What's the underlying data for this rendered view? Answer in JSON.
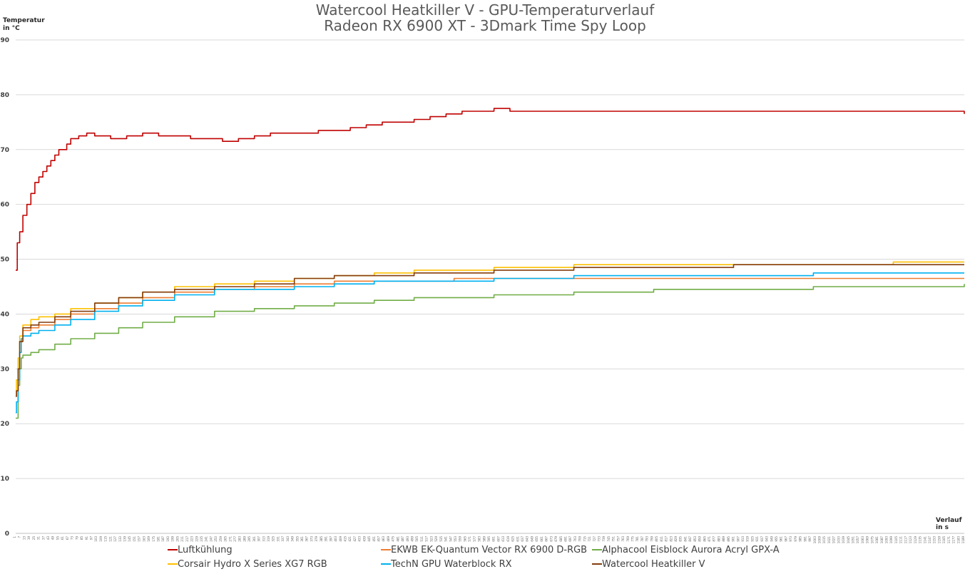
{
  "chart_data": {
    "type": "line",
    "title": "Watercool Heatkiller V - GPU-Temperaturverlauf",
    "subtitle": "Radeon RX 6900 XT - 3Dmark Time Spy Loop",
    "ylabel": [
      "Temperatur",
      "in °C"
    ],
    "xlabel": [
      "Verlauf",
      "in s"
    ],
    "ylim": [
      0,
      90
    ],
    "yticks": [
      0,
      10,
      20,
      30,
      40,
      50,
      60,
      70,
      80,
      90
    ],
    "xlim": [
      1,
      1189
    ],
    "xtick_start": 1,
    "xtick_step": 6,
    "grid": true,
    "legend_position": "bottom",
    "series": [
      {
        "name": "Luftkühlung",
        "color": "#c00000",
        "x": [
          1,
          3,
          6,
          10,
          15,
          20,
          25,
          30,
          35,
          40,
          45,
          50,
          55,
          60,
          65,
          70,
          75,
          80,
          90,
          100,
          120,
          140,
          160,
          180,
          200,
          220,
          240,
          260,
          280,
          300,
          320,
          340,
          360,
          380,
          400,
          420,
          440,
          460,
          480,
          500,
          520,
          540,
          560,
          580,
          600,
          620,
          640,
          660,
          700,
          750,
          800,
          850,
          900,
          950,
          1000,
          1050,
          1100,
          1150,
          1189
        ],
        "values": [
          48,
          53,
          55,
          58,
          60,
          62,
          64,
          65,
          66,
          67,
          68,
          69,
          70,
          70,
          71,
          72,
          72,
          72.5,
          73,
          72.5,
          72,
          72.5,
          73,
          72.5,
          72.5,
          72,
          72,
          71.5,
          72,
          72.5,
          73,
          73,
          73,
          73.5,
          73.5,
          74,
          74.5,
          75,
          75,
          75.5,
          76,
          76.5,
          77,
          77,
          77.5,
          77,
          77,
          77,
          77,
          77,
          77,
          77,
          77,
          77,
          77,
          77,
          77,
          77,
          76.5
        ]
      },
      {
        "name": "EKWB EK-Quantum Vector RX 6900 D-RGB",
        "color": "#ed7d31",
        "x": [
          1,
          2,
          4,
          6,
          10,
          20,
          30,
          50,
          70,
          100,
          130,
          160,
          200,
          250,
          300,
          350,
          400,
          450,
          500,
          550,
          600,
          700,
          800,
          900,
          1000,
          1100,
          1189
        ],
        "values": [
          25,
          26,
          30,
          35,
          37,
          37.5,
          38,
          39,
          40,
          41,
          42,
          43,
          44,
          44.5,
          45,
          45.5,
          46,
          46,
          46,
          46.5,
          46.5,
          46.5,
          46.5,
          46.5,
          46.5,
          46.5,
          46.5
        ]
      },
      {
        "name": "Alphacool Eisblock Aurora Acryl GPX-A",
        "color": "#70ad47",
        "x": [
          1,
          2,
          4,
          6,
          8,
          10,
          20,
          30,
          50,
          70,
          100,
          130,
          160,
          200,
          250,
          300,
          350,
          400,
          450,
          500,
          600,
          700,
          800,
          900,
          1000,
          1100,
          1189
        ],
        "values": [
          21,
          21,
          27,
          30,
          32,
          32.5,
          33,
          33.5,
          34.5,
          35.5,
          36.5,
          37.5,
          38.5,
          39.5,
          40.5,
          41,
          41.5,
          42,
          42.5,
          43,
          43.5,
          44,
          44.5,
          44.5,
          45,
          45,
          45.5
        ]
      },
      {
        "name": "Corsair Hydro X Series XG7 RGB",
        "color": "#ffc000",
        "x": [
          1,
          2,
          4,
          6,
          10,
          20,
          30,
          50,
          70,
          100,
          130,
          160,
          200,
          250,
          300,
          350,
          400,
          450,
          500,
          600,
          700,
          800,
          900,
          1000,
          1100,
          1189
        ],
        "values": [
          26,
          28,
          32,
          36,
          38,
          39,
          39.5,
          40,
          41,
          42,
          43,
          44,
          45,
          45.5,
          46,
          46.5,
          47,
          47.5,
          48,
          48.5,
          49,
          49,
          49,
          49,
          49.5,
          49.5
        ]
      },
      {
        "name": "TechN GPU Waterblock RX",
        "color": "#00b0f0",
        "x": [
          1,
          2,
          4,
          6,
          8,
          10,
          20,
          30,
          50,
          70,
          100,
          130,
          160,
          200,
          250,
          300,
          350,
          400,
          450,
          500,
          600,
          700,
          800,
          900,
          1000,
          1100,
          1189
        ],
        "values": [
          22,
          24,
          28,
          33,
          35.5,
          36,
          36.5,
          37,
          38,
          39,
          40.5,
          41.5,
          42.5,
          43.5,
          44.5,
          44.5,
          45,
          45.5,
          46,
          46,
          46.5,
          47,
          47,
          47,
          47.5,
          47.5,
          47.5
        ]
      },
      {
        "name": "Watercool Heatkiller V",
        "color": "#843c0c",
        "x": [
          1,
          2,
          4,
          6,
          10,
          20,
          30,
          50,
          70,
          100,
          130,
          160,
          200,
          250,
          300,
          350,
          400,
          450,
          500,
          600,
          700,
          800,
          900,
          1000,
          1100,
          1189
        ],
        "values": [
          25,
          26,
          30,
          35,
          37.5,
          38,
          38.5,
          39.5,
          40.5,
          42,
          43,
          44,
          44.5,
          45,
          45.5,
          46.5,
          47,
          47,
          47.5,
          48,
          48.5,
          48.5,
          49,
          49,
          49,
          49
        ]
      }
    ]
  }
}
